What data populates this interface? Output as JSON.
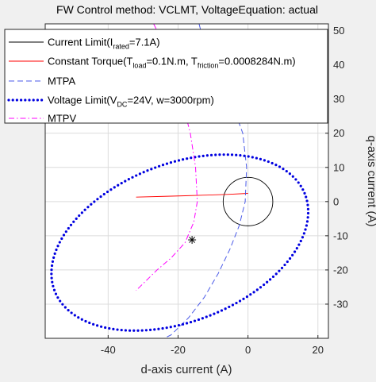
{
  "chart_data": {
    "type": "line",
    "title": "FW Control method: VCLMT, VoltageEquation: actual",
    "xlabel": "d-axis current (A)",
    "ylabel": "q-axis current (A)",
    "xlim": [
      -58,
      23
    ],
    "ylim": [
      -40,
      52
    ],
    "x_ticks": [
      -40,
      -20,
      0,
      20
    ],
    "y_ticks": [
      -30,
      -20,
      -10,
      0,
      10,
      20,
      30,
      40,
      50
    ],
    "grid": true,
    "y_axis_location": "right",
    "legend_location": "top-left",
    "legend": [
      {
        "id": "current",
        "parts": [
          {
            "t": "Current Limit(I"
          },
          {
            "t": "rated",
            "sub": true
          },
          {
            "t": "=7.1A)"
          }
        ]
      },
      {
        "id": "torque",
        "parts": [
          {
            "t": "Constant Torque(T"
          },
          {
            "t": "load",
            "sub": true
          },
          {
            "t": "=0.1N.m, T"
          },
          {
            "t": "friction",
            "sub": true
          },
          {
            "t": "=0.0008284N.m)"
          }
        ]
      },
      {
        "id": "mtpa",
        "parts": [
          {
            "t": "MTPA"
          }
        ]
      },
      {
        "id": "voltage",
        "parts": [
          {
            "t": "Voltage Limit(V"
          },
          {
            "t": "DC",
            "sub": true
          },
          {
            "t": "=24V, w=3000rpm)"
          }
        ]
      },
      {
        "id": "mtpv",
        "parts": [
          {
            "t": "MTPV"
          }
        ]
      }
    ],
    "series": [
      {
        "id": "current",
        "color": "#000000",
        "style": "solid",
        "shape": "circle",
        "center": [
          0,
          0
        ],
        "radius": 7.1
      },
      {
        "id": "torque",
        "color": "#ff0000",
        "style": "solid",
        "x": [
          -32,
          -25,
          -18,
          -12,
          -6,
          0
        ],
        "y": [
          1.3,
          1.5,
          1.7,
          1.9,
          2.1,
          2.4
        ]
      },
      {
        "id": "mtpa",
        "color": "#4a5ae8",
        "style": "dashed",
        "x": [
          -14,
          -13,
          -9.5,
          -5,
          -1.5,
          -0.4,
          -0.8,
          -2.5,
          -5.2,
          -8.5,
          -12.5,
          -17,
          -22,
          -26
        ],
        "y": [
          52,
          48,
          40,
          30,
          20,
          10,
          0,
          -7,
          -14,
          -21,
          -28,
          -34,
          -39,
          -41
        ]
      },
      {
        "id": "voltage",
        "color": "#0000e0",
        "style": "dotted",
        "shape": "ellipse",
        "center": [
          -19.5,
          -12
        ],
        "semi_axes": [
          38.5,
          23
        ],
        "rotation_deg": 22
      },
      {
        "id": "mtpv",
        "color": "#ff00ff",
        "style": "dashdot",
        "x": [
          -27,
          -25,
          -22,
          -19,
          -16.5,
          -15,
          -14.5,
          -15.5,
          -18,
          -22,
          -26,
          -29,
          -32
        ],
        "y": [
          52,
          48,
          40,
          30,
          20,
          10,
          0,
          -6,
          -12,
          -16.5,
          -20,
          -23,
          -26
        ]
      }
    ],
    "markers": [
      {
        "symbol": "*",
        "x": -16,
        "y": -11.2,
        "color": "#000000"
      }
    ]
  }
}
